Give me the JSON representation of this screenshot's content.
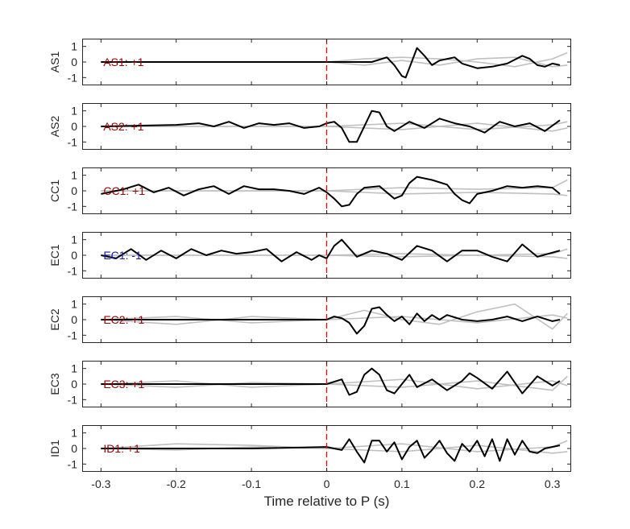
{
  "chart_data": {
    "type": "line",
    "xlabel": "Time relative to P (s)",
    "xlim": [
      -0.325,
      0.325
    ],
    "ylim": [
      -1.5,
      1.5
    ],
    "xticks": [
      -0.3,
      -0.2,
      -0.1,
      0,
      0.1,
      0.2,
      0.3
    ],
    "xtick_labels": [
      "-0.3",
      "-0.2",
      "-0.1",
      "0",
      "0.1",
      "0.2",
      "0.3"
    ],
    "yticks": [
      -1,
      0,
      1
    ],
    "ytick_labels": [
      "-1",
      "0",
      "1"
    ],
    "grid": false,
    "pick_time": 0,
    "colors": {
      "main": "#000000",
      "background": "#c0c0c0",
      "pick": "#ff0000",
      "positive": "#990000",
      "negative": "#1a1aa6"
    },
    "panels": [
      {
        "name": "AS1",
        "annotation": "AS1: +1",
        "polarity": "positive",
        "main": {
          "x": [
            -0.3,
            -0.14,
            0,
            0.06,
            0.08,
            0.09,
            0.1,
            0.105,
            0.12,
            0.13,
            0.14,
            0.15,
            0.17,
            0.18,
            0.2,
            0.22,
            0.24,
            0.26,
            0.27,
            0.28,
            0.29,
            0.3,
            0.31
          ],
          "y": [
            0,
            0,
            0,
            0,
            0.3,
            -0.2,
            -0.9,
            -1.0,
            0.9,
            0.4,
            -0.2,
            0.1,
            0.3,
            -0.1,
            -0.4,
            -0.3,
            -0.1,
            0.4,
            0.2,
            -0.2,
            -0.3,
            -0.1,
            -0.2
          ]
        },
        "background": [
          {
            "x": [
              -0.3,
              0,
              0.05,
              0.1,
              0.15,
              0.2,
              0.25,
              0.3,
              0.32
            ],
            "y": [
              0,
              0,
              0.2,
              0.3,
              0.2,
              0,
              -0.3,
              0.2,
              0.6
            ]
          },
          {
            "x": [
              -0.3,
              0,
              0.05,
              0.1,
              0.15,
              0.2,
              0.25,
              0.3,
              0.32
            ],
            "y": [
              0,
              0,
              -0.2,
              0.1,
              -0.2,
              0.2,
              0.3,
              -0.3,
              -0.2
            ]
          }
        ]
      },
      {
        "name": "AS2",
        "annotation": "AS2: +1",
        "polarity": "positive",
        "main": {
          "x": [
            -0.3,
            -0.2,
            -0.17,
            -0.15,
            -0.13,
            -0.11,
            -0.09,
            -0.07,
            -0.05,
            -0.03,
            -0.01,
            0,
            0.01,
            0.02,
            0.03,
            0.04,
            0.06,
            0.07,
            0.08,
            0.09,
            0.11,
            0.13,
            0.15,
            0.17,
            0.19,
            0.21,
            0.23,
            0.25,
            0.27,
            0.29,
            0.31
          ],
          "y": [
            0,
            0.1,
            0.2,
            0,
            0.3,
            -0.1,
            0.2,
            0.1,
            0.2,
            -0.1,
            0,
            0.2,
            0.3,
            -0.1,
            -1.0,
            -1.0,
            1.0,
            0.9,
            0,
            -0.3,
            0.3,
            -0.1,
            0.5,
            0.2,
            0,
            -0.4,
            0.3,
            0,
            0.2,
            -0.3,
            0.4
          ]
        },
        "background": [
          {
            "x": [
              -0.3,
              0,
              0.1,
              0.2,
              0.3,
              0.32
            ],
            "y": [
              0,
              0,
              0.2,
              -0.2,
              0.1,
              0.3
            ]
          },
          {
            "x": [
              -0.3,
              0,
              0.1,
              0.2,
              0.3,
              0.32
            ],
            "y": [
              0,
              0,
              -0.2,
              0.2,
              -0.3,
              -0.1
            ]
          }
        ]
      },
      {
        "name": "CC1",
        "annotation": "CC1: +1",
        "polarity": "positive",
        "main": {
          "x": [
            -0.3,
            -0.27,
            -0.25,
            -0.23,
            -0.21,
            -0.19,
            -0.17,
            -0.15,
            -0.13,
            -0.11,
            -0.09,
            -0.07,
            -0.05,
            -0.03,
            -0.01,
            0,
            0.01,
            0.02,
            0.03,
            0.04,
            0.05,
            0.07,
            0.09,
            0.1,
            0.11,
            0.12,
            0.14,
            0.16,
            0.17,
            0.18,
            0.19,
            0.2,
            0.22,
            0.24,
            0.26,
            0.28,
            0.3,
            0.31
          ],
          "y": [
            -0.2,
            0.1,
            0.4,
            -0.1,
            0.2,
            -0.3,
            0.1,
            0.3,
            -0.2,
            0.3,
            0.1,
            0.1,
            0,
            -0.2,
            0.2,
            -0.1,
            -0.5,
            -1.0,
            -0.9,
            -0.2,
            0.2,
            0.3,
            -0.5,
            -0.3,
            0.5,
            0.9,
            0.7,
            0.4,
            -0.2,
            -0.6,
            -0.8,
            -0.2,
            0,
            0.3,
            0.2,
            0.3,
            0.2,
            -0.2
          ]
        },
        "background": [
          {
            "x": [
              -0.3,
              0,
              0.1,
              0.2,
              0.3,
              0.32
            ],
            "y": [
              0,
              0,
              0.2,
              0.1,
              0.2,
              0.7
            ]
          },
          {
            "x": [
              -0.3,
              0,
              0.1,
              0.2,
              0.3,
              0.32
            ],
            "y": [
              0,
              0,
              -0.2,
              -0.1,
              -0.2,
              -0.3
            ]
          }
        ]
      },
      {
        "name": "EC1",
        "annotation": "EC1: -1",
        "polarity": "negative",
        "main": {
          "x": [
            -0.3,
            -0.28,
            -0.26,
            -0.24,
            -0.22,
            -0.2,
            -0.18,
            -0.16,
            -0.14,
            -0.12,
            -0.1,
            -0.08,
            -0.06,
            -0.04,
            -0.02,
            -0.01,
            0,
            0.01,
            0.02,
            0.04,
            0.06,
            0.08,
            0.1,
            0.12,
            0.14,
            0.16,
            0.18,
            0.2,
            0.22,
            0.24,
            0.26,
            0.28,
            0.31
          ],
          "y": [
            0,
            -0.2,
            0.4,
            -0.3,
            0.3,
            -0.2,
            0.4,
            0,
            0.3,
            0.1,
            0.2,
            0.4,
            -0.4,
            0.2,
            -0.3,
            0,
            -0.2,
            0.6,
            1.0,
            -0.1,
            0.3,
            0.1,
            -0.3,
            0.6,
            0.3,
            -0.4,
            0.3,
            0.3,
            -0.1,
            -0.4,
            0.7,
            -0.1,
            0.3
          ]
        },
        "background": [
          {
            "x": [
              -0.3,
              0,
              0.1,
              0.2,
              0.3,
              0.32
            ],
            "y": [
              0,
              0,
              0.1,
              0,
              0.1,
              0.4
            ]
          },
          {
            "x": [
              -0.3,
              0,
              0.1,
              0.2,
              0.3,
              0.32
            ],
            "y": [
              0,
              0,
              -0.1,
              0,
              -0.1,
              -0.2
            ]
          }
        ]
      },
      {
        "name": "EC2",
        "annotation": "EC2: +1",
        "polarity": "positive",
        "main": {
          "x": [
            -0.3,
            0,
            0.01,
            0.02,
            0.03,
            0.04,
            0.05,
            0.06,
            0.07,
            0.08,
            0.09,
            0.1,
            0.11,
            0.12,
            0.13,
            0.14,
            0.15,
            0.16,
            0.18,
            0.2,
            0.22,
            0.24,
            0.26,
            0.28,
            0.3,
            0.31
          ],
          "y": [
            0,
            0,
            0.2,
            0.1,
            -0.2,
            -0.9,
            -0.4,
            0.7,
            0.8,
            0.3,
            -0.1,
            0.2,
            -0.3,
            0.4,
            -0.1,
            0.3,
            0,
            0.3,
            0,
            -0.1,
            0,
            0.2,
            -0.1,
            0.2,
            -0.1,
            0
          ]
        },
        "background": [
          {
            "x": [
              -0.3,
              -0.2,
              -0.1,
              0,
              0.05,
              0.1,
              0.15,
              0.2,
              0.25,
              0.3,
              0.32
            ],
            "y": [
              0,
              -0.3,
              0.2,
              0,
              0.6,
              0,
              -0.3,
              0.5,
              1.0,
              -0.6,
              0.4
            ]
          },
          {
            "x": [
              -0.3,
              -0.2,
              -0.1,
              0,
              0.1,
              0.2,
              0.3,
              0.32
            ],
            "y": [
              0,
              0.2,
              -0.2,
              0,
              0.2,
              -0.2,
              0.3,
              0.1
            ]
          }
        ]
      },
      {
        "name": "EC3",
        "annotation": "EC3: +1",
        "polarity": "positive",
        "main": {
          "x": [
            -0.3,
            -0.2,
            -0.1,
            0,
            0.02,
            0.03,
            0.04,
            0.05,
            0.06,
            0.07,
            0.08,
            0.09,
            0.1,
            0.11,
            0.12,
            0.14,
            0.16,
            0.18,
            0.19,
            0.2,
            0.22,
            0.24,
            0.26,
            0.28,
            0.3,
            0.31
          ],
          "y": [
            0,
            0,
            0,
            0,
            0.3,
            -0.7,
            -0.5,
            0.6,
            1.0,
            0.6,
            -0.4,
            -0.6,
            0,
            0.6,
            -0.2,
            0.3,
            -0.4,
            0.2,
            0.7,
            0.4,
            -0.3,
            0.8,
            -0.6,
            0.5,
            -0.1,
            0.2
          ]
        },
        "background": [
          {
            "x": [
              -0.3,
              -0.2,
              -0.1,
              0,
              0.1,
              0.2,
              0.3,
              0.32
            ],
            "y": [
              0,
              0.2,
              -0.2,
              0,
              0.3,
              -0.3,
              0.2,
              -0.1
            ]
          },
          {
            "x": [
              -0.3,
              -0.2,
              -0.1,
              0,
              0.1,
              0.2,
              0.3,
              0.32
            ],
            "y": [
              0,
              -0.2,
              0.1,
              0,
              -0.2,
              0.2,
              -0.4,
              0.5
            ]
          }
        ]
      },
      {
        "name": "ID1",
        "annotation": "ID1: +1",
        "polarity": "positive",
        "main": {
          "x": [
            -0.3,
            -0.1,
            0,
            0.01,
            0.02,
            0.03,
            0.04,
            0.05,
            0.06,
            0.07,
            0.08,
            0.09,
            0.1,
            0.11,
            0.12,
            0.13,
            0.14,
            0.15,
            0.16,
            0.17,
            0.18,
            0.19,
            0.2,
            0.21,
            0.22,
            0.23,
            0.24,
            0.25,
            0.26,
            0.27,
            0.28,
            0.29,
            0.31
          ],
          "y": [
            0,
            0,
            0.1,
            0,
            -0.1,
            0.6,
            -0.2,
            -0.9,
            0.5,
            0.5,
            -0.2,
            0.4,
            -0.7,
            0.1,
            0.5,
            -0.6,
            -0.1,
            0.5,
            -0.3,
            -0.8,
            0.3,
            -0.2,
            0.5,
            -0.5,
            0.6,
            -0.8,
            0.6,
            -0.4,
            0.5,
            -0.2,
            -0.3,
            0,
            0.2
          ]
        },
        "background": [
          {
            "x": [
              -0.3,
              -0.2,
              -0.1,
              0,
              0.1,
              0.2,
              0.3,
              0.32
            ],
            "y": [
              0,
              0.3,
              0.2,
              0,
              0.3,
              -0.2,
              0.1,
              0.5
            ]
          },
          {
            "x": [
              -0.3,
              -0.2,
              -0.1,
              0,
              0.1,
              0.2,
              0.3,
              0.32
            ],
            "y": [
              0,
              -0.1,
              0.1,
              0,
              -0.2,
              0.2,
              -0.3,
              -0.2
            ]
          }
        ]
      }
    ]
  }
}
